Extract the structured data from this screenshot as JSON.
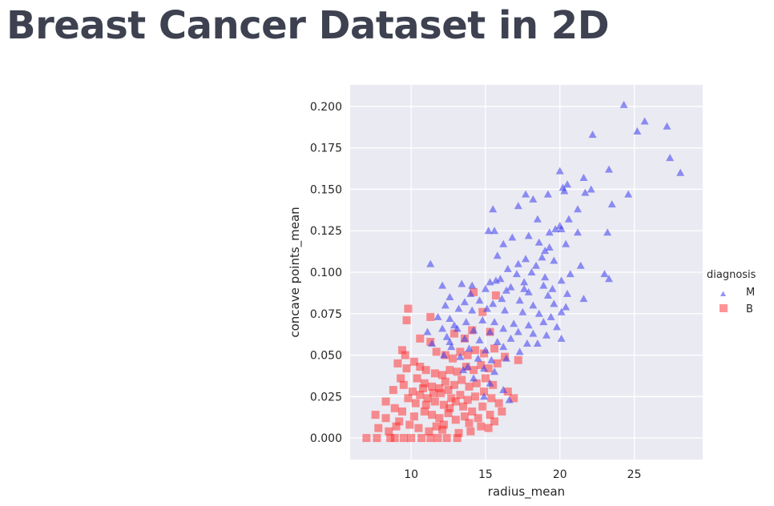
{
  "page": {
    "title": "Breast Cancer Dataset in 2D"
  },
  "chart_data": {
    "type": "scatter",
    "title": "",
    "xlabel": "radius_mean",
    "ylabel": "concave points_mean",
    "xlim": [
      5.9,
      29.6
    ],
    "ylim": [
      -0.013,
      0.213
    ],
    "xticks": [
      10,
      15,
      20,
      25
    ],
    "yticks": [
      0.0,
      0.025,
      0.05,
      0.075,
      0.1,
      0.125,
      0.15,
      0.175,
      0.2
    ],
    "ytick_labels": [
      "0.000",
      "0.025",
      "0.050",
      "0.075",
      "0.100",
      "0.125",
      "0.150",
      "0.175",
      "0.200"
    ],
    "grid": true,
    "background": "#eaeaf2",
    "legend": {
      "title": "diagnosis",
      "placement": "right"
    },
    "series": [
      {
        "name": "M",
        "marker": "triangle",
        "color": "#3b3bf0",
        "points": [
          [
            24.3,
            0.201
          ],
          [
            25.7,
            0.191
          ],
          [
            27.2,
            0.188
          ],
          [
            25.2,
            0.185
          ],
          [
            22.2,
            0.183
          ],
          [
            27.4,
            0.169
          ],
          [
            28.1,
            0.16
          ],
          [
            20.0,
            0.161
          ],
          [
            23.3,
            0.162
          ],
          [
            21.6,
            0.157
          ],
          [
            22.1,
            0.15
          ],
          [
            20.5,
            0.153
          ],
          [
            20.2,
            0.151
          ],
          [
            21.7,
            0.148
          ],
          [
            20.3,
            0.149
          ],
          [
            19.2,
            0.147
          ],
          [
            17.7,
            0.147
          ],
          [
            18.2,
            0.144
          ],
          [
            24.6,
            0.147
          ],
          [
            23.5,
            0.141
          ],
          [
            17.2,
            0.14
          ],
          [
            21.2,
            0.138
          ],
          [
            15.5,
            0.138
          ],
          [
            20.6,
            0.132
          ],
          [
            20.0,
            0.128
          ],
          [
            19.3,
            0.124
          ],
          [
            18.5,
            0.132
          ],
          [
            20.1,
            0.126
          ],
          [
            15.2,
            0.125
          ],
          [
            15.6,
            0.125
          ],
          [
            16.8,
            0.121
          ],
          [
            17.9,
            0.122
          ],
          [
            19.7,
            0.126
          ],
          [
            23.2,
            0.124
          ],
          [
            21.2,
            0.124
          ],
          [
            16.2,
            0.117
          ],
          [
            19.3,
            0.115
          ],
          [
            18.6,
            0.118
          ],
          [
            20.4,
            0.117
          ],
          [
            19.0,
            0.113
          ],
          [
            17.7,
            0.108
          ],
          [
            18.8,
            0.109
          ],
          [
            15.8,
            0.11
          ],
          [
            17.2,
            0.105
          ],
          [
            18.4,
            0.104
          ],
          [
            19.6,
            0.107
          ],
          [
            21.4,
            0.104
          ],
          [
            11.3,
            0.105
          ],
          [
            16.5,
            0.102
          ],
          [
            17.1,
            0.099
          ],
          [
            18.1,
            0.1
          ],
          [
            19.0,
            0.097
          ],
          [
            20.1,
            0.095
          ],
          [
            20.7,
            0.099
          ],
          [
            16.0,
            0.096
          ],
          [
            15.3,
            0.094
          ],
          [
            17.6,
            0.094
          ],
          [
            18.9,
            0.092
          ],
          [
            19.5,
            0.09
          ],
          [
            23.0,
            0.099
          ],
          [
            23.3,
            0.096
          ],
          [
            12.1,
            0.092
          ],
          [
            13.4,
            0.093
          ],
          [
            14.1,
            0.092
          ],
          [
            15.0,
            0.09
          ],
          [
            16.4,
            0.089
          ],
          [
            17.9,
            0.088
          ],
          [
            19.2,
            0.086
          ],
          [
            20.5,
            0.087
          ],
          [
            21.6,
            0.084
          ],
          [
            12.6,
            0.085
          ],
          [
            13.6,
            0.082
          ],
          [
            14.6,
            0.083
          ],
          [
            15.5,
            0.081
          ],
          [
            16.1,
            0.084
          ],
          [
            17.3,
            0.083
          ],
          [
            18.2,
            0.08
          ],
          [
            19.6,
            0.081
          ],
          [
            20.4,
            0.079
          ],
          [
            12.3,
            0.08
          ],
          [
            13.2,
            0.078
          ],
          [
            14.1,
            0.077
          ],
          [
            15.1,
            0.078
          ],
          [
            16.3,
            0.077
          ],
          [
            17.5,
            0.076
          ],
          [
            18.6,
            0.075
          ],
          [
            19.4,
            0.073
          ],
          [
            20.1,
            0.076
          ],
          [
            11.8,
            0.073
          ],
          [
            12.6,
            0.072
          ],
          [
            13.7,
            0.07
          ],
          [
            14.8,
            0.071
          ],
          [
            15.6,
            0.07
          ],
          [
            16.9,
            0.069
          ],
          [
            17.9,
            0.068
          ],
          [
            18.9,
            0.07
          ],
          [
            19.8,
            0.067
          ],
          [
            12.1,
            0.066
          ],
          [
            13.1,
            0.066
          ],
          [
            14.2,
            0.065
          ],
          [
            15.3,
            0.064
          ],
          [
            16.2,
            0.066
          ],
          [
            17.2,
            0.064
          ],
          [
            18.2,
            0.063
          ],
          [
            19.1,
            0.062
          ],
          [
            11.1,
            0.064
          ],
          [
            12.4,
            0.061
          ],
          [
            13.6,
            0.06
          ],
          [
            14.6,
            0.059
          ],
          [
            15.8,
            0.058
          ],
          [
            16.7,
            0.06
          ],
          [
            17.8,
            0.057
          ],
          [
            18.5,
            0.057
          ],
          [
            20.1,
            0.06
          ],
          [
            11.4,
            0.057
          ],
          [
            12.7,
            0.055
          ],
          [
            13.9,
            0.054
          ],
          [
            15.0,
            0.053
          ],
          [
            16.2,
            0.055
          ],
          [
            17.3,
            0.052
          ],
          [
            12.2,
            0.05
          ],
          [
            13.3,
            0.049
          ],
          [
            14.5,
            0.048
          ],
          [
            15.4,
            0.047
          ],
          [
            16.4,
            0.048
          ],
          [
            13.8,
            0.043
          ],
          [
            14.9,
            0.042
          ],
          [
            15.6,
            0.04
          ],
          [
            14.2,
            0.036
          ],
          [
            15.3,
            0.033
          ],
          [
            14.9,
            0.025
          ],
          [
            16.6,
            0.023
          ],
          [
            16.2,
            0.029
          ],
          [
            13.5,
            0.041
          ],
          [
            12.6,
            0.058
          ],
          [
            12.9,
            0.068
          ],
          [
            14.0,
            0.087
          ],
          [
            15.7,
            0.095
          ],
          [
            16.7,
            0.091
          ],
          [
            17.6,
            0.09
          ]
        ]
      },
      {
        "name": "B",
        "marker": "square",
        "color": "#ff2a2a",
        "points": [
          [
            7.0,
            0.0
          ],
          [
            7.7,
            0.0
          ],
          [
            8.6,
            0.0
          ],
          [
            8.9,
            0.0
          ],
          [
            9.5,
            0.0
          ],
          [
            10.0,
            0.0
          ],
          [
            10.7,
            0.0
          ],
          [
            11.3,
            0.0
          ],
          [
            11.8,
            0.0
          ],
          [
            12.4,
            0.0
          ],
          [
            13.1,
            0.0
          ],
          [
            7.8,
            0.006
          ],
          [
            8.3,
            0.012
          ],
          [
            9.2,
            0.01
          ],
          [
            9.9,
            0.008
          ],
          [
            10.5,
            0.006
          ],
          [
            11.2,
            0.004
          ],
          [
            12.1,
            0.005
          ],
          [
            13.2,
            0.003
          ],
          [
            14.0,
            0.004
          ],
          [
            14.7,
            0.007
          ],
          [
            15.2,
            0.006
          ],
          [
            7.6,
            0.014
          ],
          [
            8.3,
            0.022
          ],
          [
            8.9,
            0.018
          ],
          [
            9.4,
            0.016
          ],
          [
            9.8,
            0.024
          ],
          [
            10.3,
            0.021
          ],
          [
            10.9,
            0.016
          ],
          [
            11.4,
            0.014
          ],
          [
            11.9,
            0.012
          ],
          [
            12.5,
            0.015
          ],
          [
            13.0,
            0.011
          ],
          [
            13.6,
            0.013
          ],
          [
            14.1,
            0.016
          ],
          [
            14.8,
            0.019
          ],
          [
            15.3,
            0.014
          ],
          [
            8.8,
            0.029
          ],
          [
            9.5,
            0.032
          ],
          [
            10.1,
            0.028
          ],
          [
            10.6,
            0.026
          ],
          [
            11.1,
            0.024
          ],
          [
            11.6,
            0.022
          ],
          [
            12.2,
            0.02
          ],
          [
            12.7,
            0.024
          ],
          [
            13.3,
            0.026
          ],
          [
            13.8,
            0.023
          ],
          [
            14.3,
            0.025
          ],
          [
            14.9,
            0.028
          ],
          [
            15.4,
            0.024
          ],
          [
            9.3,
            0.036
          ],
          [
            9.7,
            0.042
          ],
          [
            10.4,
            0.036
          ],
          [
            10.9,
            0.033
          ],
          [
            11.4,
            0.031
          ],
          [
            11.9,
            0.03
          ],
          [
            12.3,
            0.034
          ],
          [
            12.9,
            0.032
          ],
          [
            13.4,
            0.035
          ],
          [
            13.9,
            0.031
          ],
          [
            14.4,
            0.033
          ],
          [
            15.0,
            0.036
          ],
          [
            15.5,
            0.032
          ],
          [
            9.1,
            0.045
          ],
          [
            9.6,
            0.05
          ],
          [
            10.2,
            0.046
          ],
          [
            10.6,
            0.043
          ],
          [
            11.0,
            0.041
          ],
          [
            11.6,
            0.039
          ],
          [
            12.1,
            0.038
          ],
          [
            12.6,
            0.041
          ],
          [
            13.1,
            0.04
          ],
          [
            13.7,
            0.043
          ],
          [
            14.2,
            0.041
          ],
          [
            14.7,
            0.044
          ],
          [
            15.2,
            0.042
          ],
          [
            15.8,
            0.045
          ],
          [
            9.4,
            0.053
          ],
          [
            10.6,
            0.06
          ],
          [
            11.3,
            0.058
          ],
          [
            11.7,
            0.052
          ],
          [
            12.3,
            0.05
          ],
          [
            12.8,
            0.048
          ],
          [
            13.3,
            0.052
          ],
          [
            13.8,
            0.05
          ],
          [
            14.3,
            0.053
          ],
          [
            14.9,
            0.051
          ],
          [
            15.6,
            0.054
          ],
          [
            16.3,
            0.049
          ],
          [
            17.2,
            0.047
          ],
          [
            9.8,
            0.078
          ],
          [
            9.7,
            0.071
          ],
          [
            11.3,
            0.073
          ],
          [
            14.8,
            0.076
          ],
          [
            14.2,
            0.088
          ],
          [
            15.7,
            0.086
          ],
          [
            15.3,
            0.064
          ],
          [
            14.1,
            0.065
          ],
          [
            12.9,
            0.063
          ],
          [
            13.6,
            0.06
          ],
          [
            16.5,
            0.028
          ],
          [
            16.9,
            0.024
          ],
          [
            15.9,
            0.021
          ],
          [
            16.1,
            0.016
          ],
          [
            15.6,
            0.01
          ],
          [
            11.5,
            0.027
          ],
          [
            12.0,
            0.027
          ],
          [
            12.5,
            0.029
          ],
          [
            13.0,
            0.022
          ],
          [
            11.0,
            0.02
          ],
          [
            10.8,
            0.03
          ],
          [
            12.6,
            0.018
          ],
          [
            13.5,
            0.019
          ],
          [
            12.2,
            0.008
          ],
          [
            11.7,
            0.007
          ],
          [
            10.2,
            0.013
          ],
          [
            9.0,
            0.007
          ],
          [
            8.5,
            0.004
          ],
          [
            13.9,
            0.009
          ],
          [
            14.5,
            0.012
          ]
        ]
      }
    ]
  }
}
